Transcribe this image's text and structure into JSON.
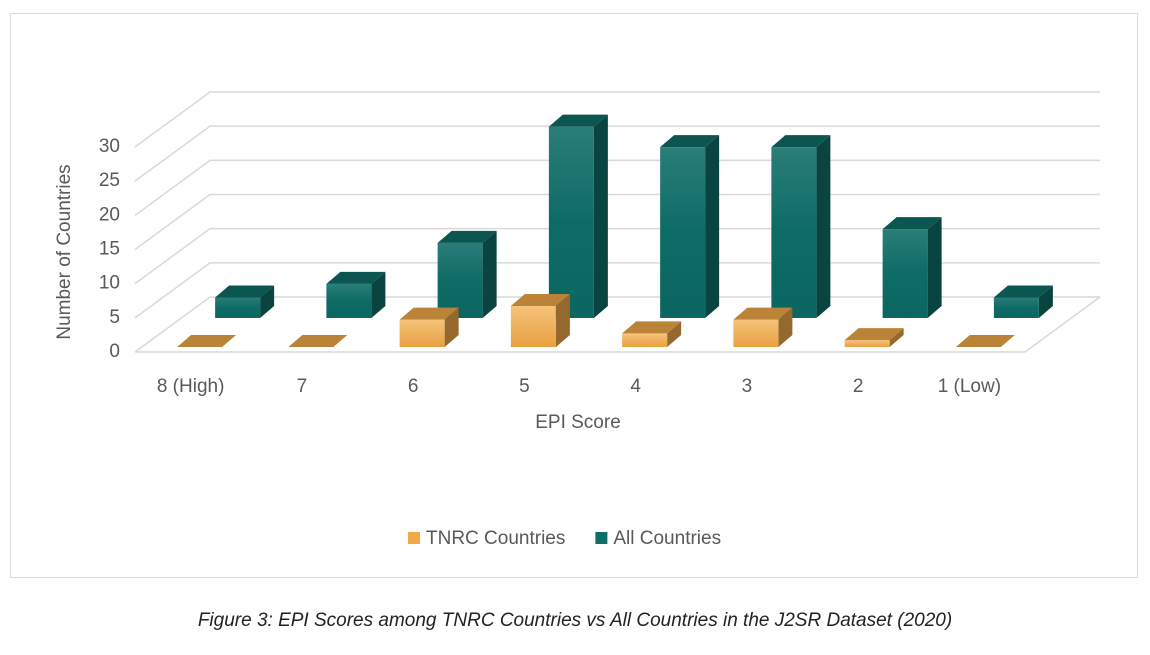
{
  "chart_data": {
    "type": "bar3d",
    "categories": [
      "8  (High)",
      "7",
      "6",
      "5",
      "4",
      "3",
      "2",
      "1  (Low)"
    ],
    "series": [
      {
        "name": "TNRC Countries",
        "color": "#f0a848",
        "values": [
          0,
          0,
          4,
          6,
          2,
          4,
          1,
          0
        ]
      },
      {
        "name": "All Countries",
        "color": "#0f6e69",
        "values": [
          3,
          5,
          11,
          28,
          25,
          25,
          13,
          3
        ]
      }
    ],
    "ylim": [
      0,
      30
    ],
    "yticks": [
      0,
      5,
      10,
      15,
      20,
      25,
      30
    ],
    "grid": true,
    "xlabel": "EPI Score",
    "ylabel": "Number of Countries",
    "caption": "Figure 3: EPI Scores among TNRC Countries vs All Countries in the J2SR Dataset (2020)"
  }
}
